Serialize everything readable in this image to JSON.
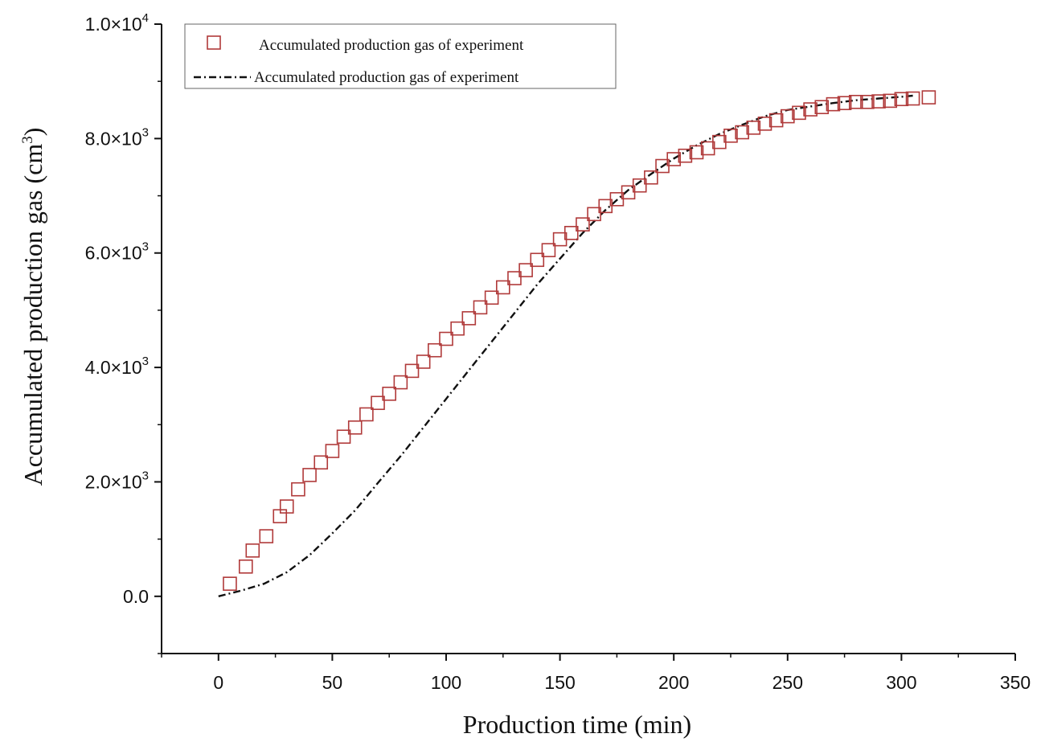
{
  "chart_data": {
    "type": "scatter",
    "title": "",
    "xlabel": "Production time (min)",
    "ylabel": {
      "text": "Accumulated production gas (cm",
      "sup": "3",
      "close": ")"
    },
    "xlim": [
      -25,
      350
    ],
    "ylim": [
      -1000,
      10000
    ],
    "x_ticks": [
      {
        "value": 0,
        "label": "0"
      },
      {
        "value": 50,
        "label": "50"
      },
      {
        "value": 100,
        "label": "100"
      },
      {
        "value": 150,
        "label": "150"
      },
      {
        "value": 200,
        "label": "200"
      },
      {
        "value": 250,
        "label": "250"
      },
      {
        "value": 300,
        "label": "300"
      },
      {
        "value": 350,
        "label": "350"
      }
    ],
    "y_ticks": [
      {
        "value": 0,
        "base": "0.0",
        "exp": ""
      },
      {
        "value": 2000,
        "base": "2.0×10",
        "exp": "3"
      },
      {
        "value": 4000,
        "base": "4.0×10",
        "exp": "3"
      },
      {
        "value": 6000,
        "base": "6.0×10",
        "exp": "3"
      },
      {
        "value": 8000,
        "base": "8.0×10",
        "exp": "3"
      },
      {
        "value": 10000,
        "base": "1.0×10",
        "exp": "4"
      }
    ],
    "legend_position": "top-left",
    "grid": false,
    "series": [
      {
        "name": "Accumulated production gas of experiment",
        "marker": "open-square",
        "color": "#b03a3a",
        "x": [
          5,
          12,
          15,
          21,
          27,
          30,
          35,
          40,
          45,
          50,
          55,
          60,
          65,
          70,
          75,
          80,
          85,
          90,
          95,
          100,
          105,
          110,
          115,
          120,
          125,
          130,
          135,
          140,
          145,
          150,
          155,
          160,
          165,
          170,
          175,
          180,
          185,
          190,
          195,
          200,
          205,
          210,
          215,
          220,
          225,
          230,
          235,
          240,
          245,
          250,
          255,
          260,
          265,
          270,
          275,
          280,
          285,
          290,
          295,
          300,
          305,
          312
        ],
        "y": [
          220,
          520,
          800,
          1050,
          1400,
          1570,
          1870,
          2120,
          2340,
          2540,
          2790,
          2950,
          3180,
          3380,
          3540,
          3740,
          3940,
          4100,
          4300,
          4500,
          4680,
          4860,
          5050,
          5220,
          5400,
          5560,
          5700,
          5880,
          6050,
          6240,
          6350,
          6500,
          6680,
          6820,
          6940,
          7060,
          7180,
          7320,
          7520,
          7640,
          7700,
          7760,
          7830,
          7940,
          8050,
          8110,
          8190,
          8260,
          8320,
          8390,
          8450,
          8510,
          8550,
          8600,
          8620,
          8640,
          8640,
          8650,
          8660,
          8690,
          8700,
          8720
        ]
      },
      {
        "name": "Accumulated production gas of experiment",
        "line_style": "dash-dot",
        "color": "#111111",
        "x": [
          0,
          10,
          20,
          30,
          40,
          50,
          60,
          70,
          80,
          90,
          100,
          110,
          120,
          130,
          140,
          150,
          160,
          170,
          180,
          190,
          200,
          210,
          220,
          230,
          240,
          250,
          260,
          270,
          280,
          290,
          300,
          305
        ],
        "y": [
          0,
          100,
          220,
          420,
          720,
          1100,
          1500,
          1980,
          2450,
          2950,
          3450,
          3950,
          4450,
          4950,
          5450,
          5900,
          6350,
          6750,
          7100,
          7380,
          7650,
          7880,
          8080,
          8240,
          8390,
          8500,
          8560,
          8620,
          8670,
          8700,
          8730,
          8750
        ]
      }
    ]
  }
}
